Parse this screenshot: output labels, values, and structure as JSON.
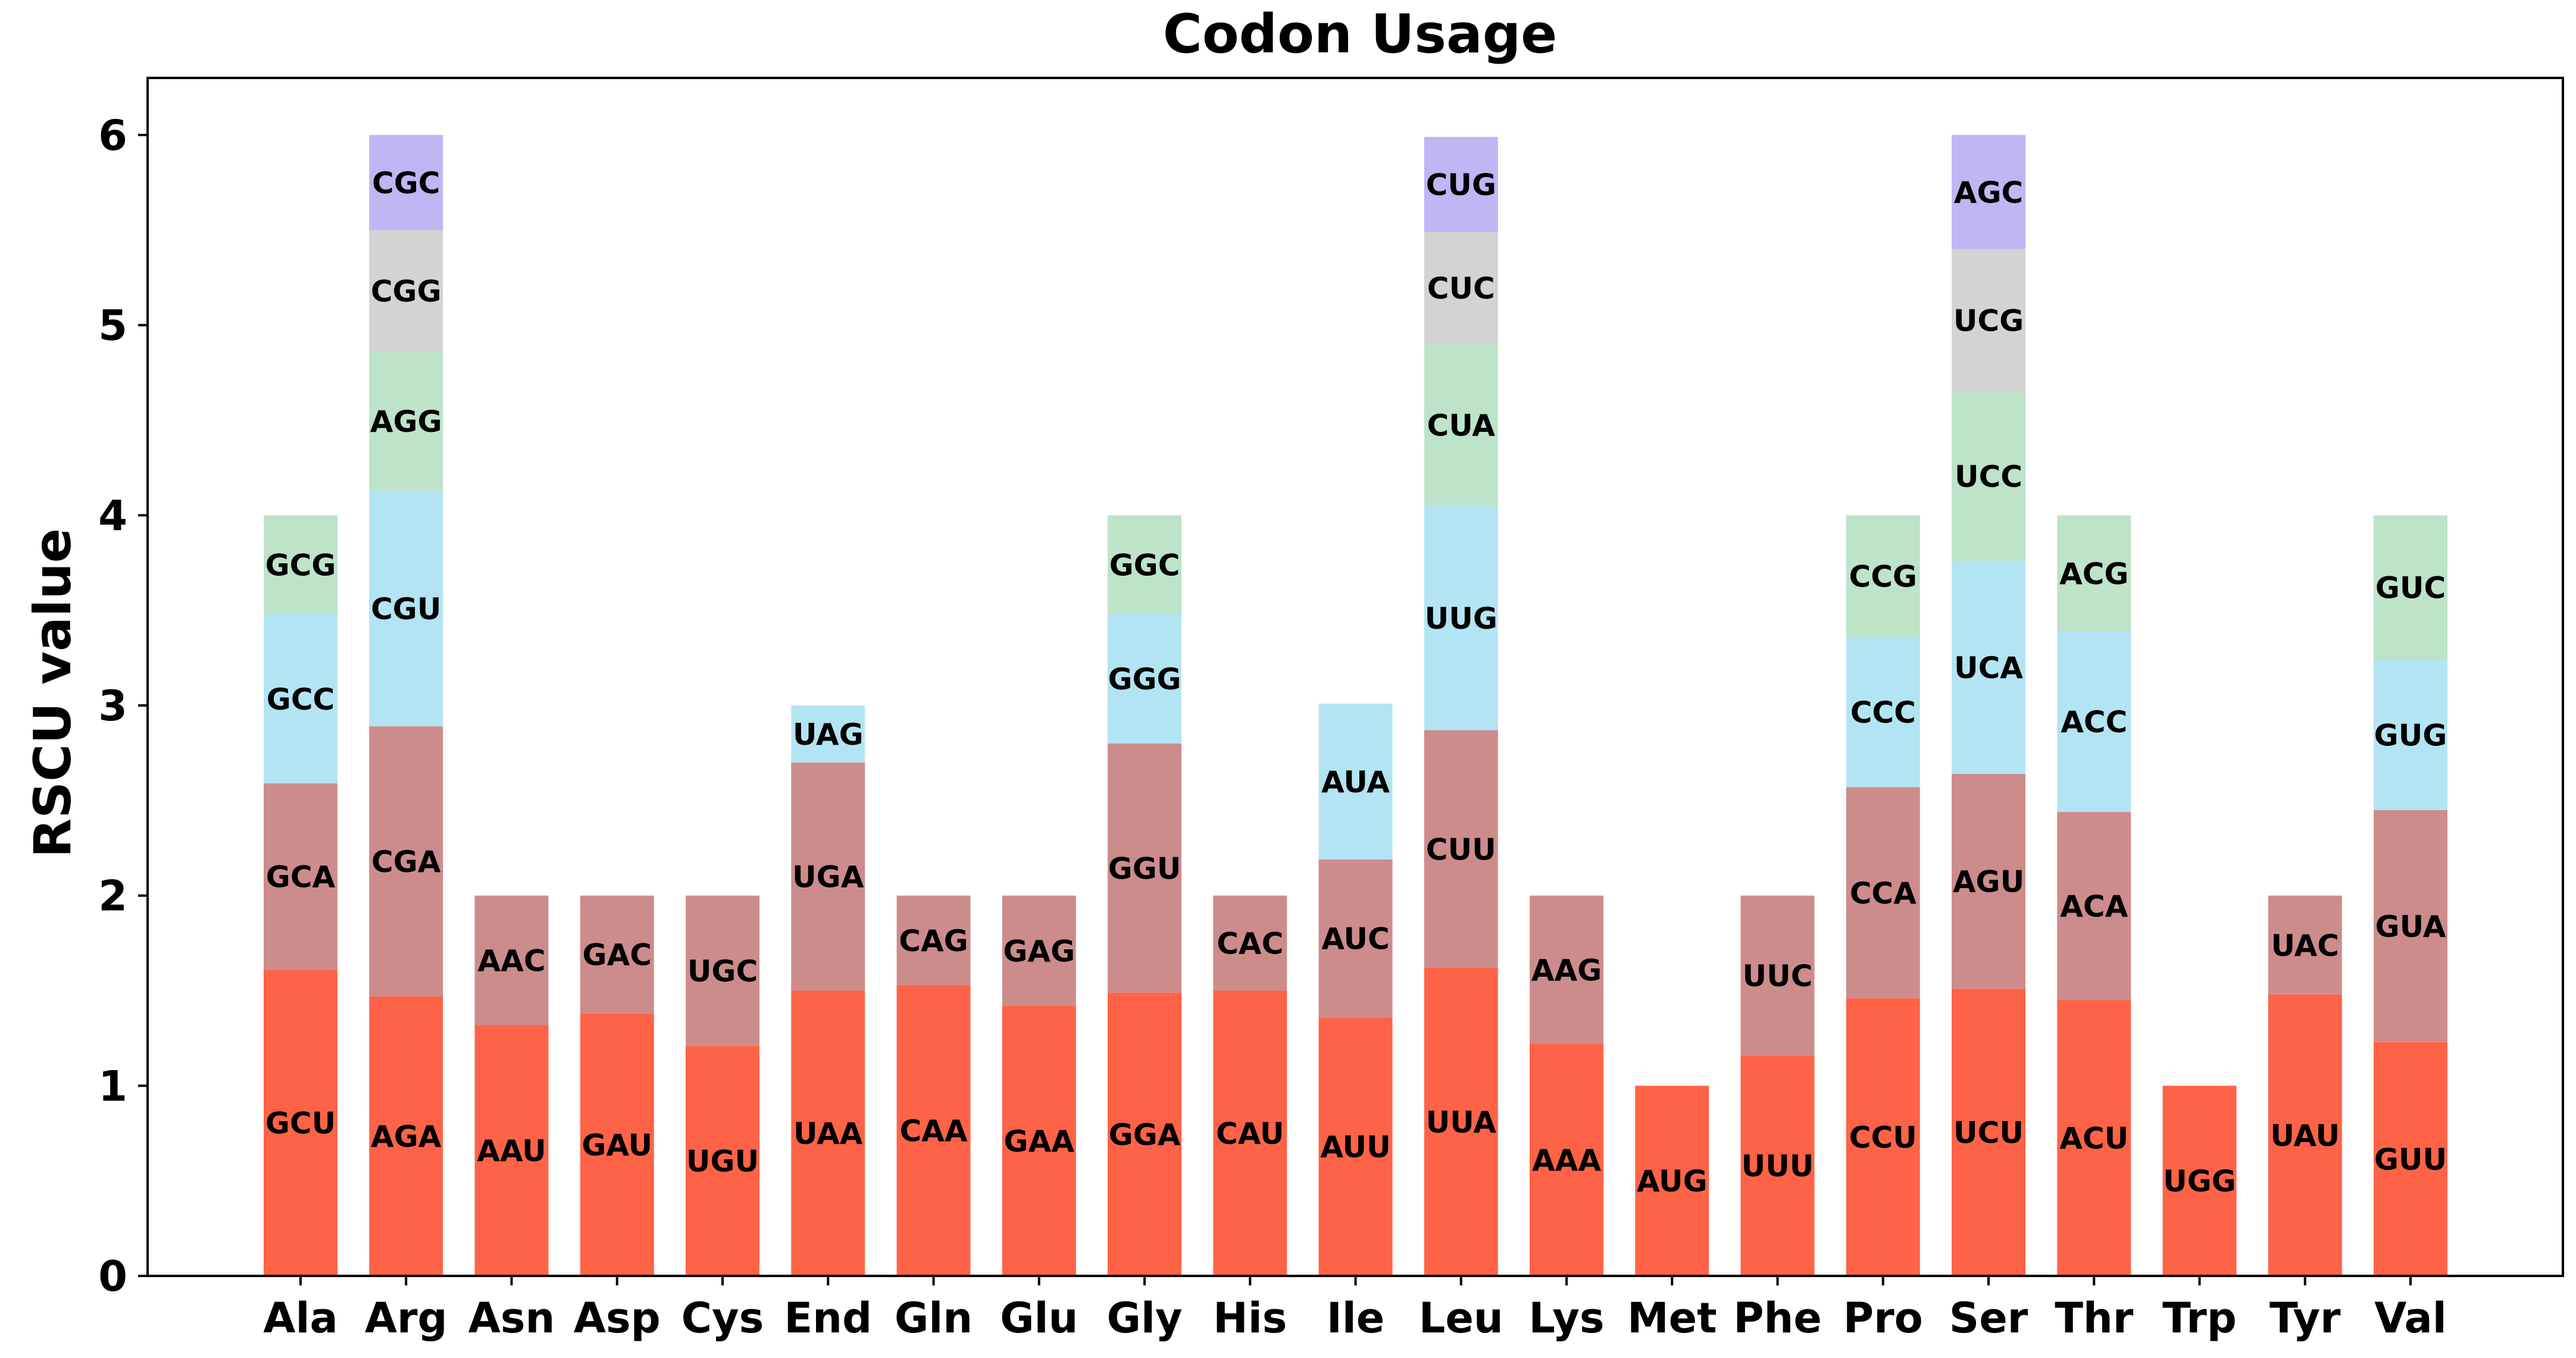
{
  "chart_data": {
    "type": "bar",
    "stacked": true,
    "title": "Codon Usage",
    "xlabel": "",
    "ylabel": "RSCU value",
    "ylim": [
      0,
      6.3
    ],
    "yticks": [
      0,
      1,
      2,
      3,
      4,
      5,
      6
    ],
    "grid": false,
    "legend": "none",
    "layer_colors": [
      "#ff6347",
      "#cd8c8c",
      "#b3e4f3",
      "#bde3c9",
      "#d3d3d3",
      "#c0b6f4"
    ],
    "categories": [
      "Ala",
      "Arg",
      "Asn",
      "Asp",
      "Cys",
      "End",
      "Gln",
      "Glu",
      "Gly",
      "His",
      "Ile",
      "Leu",
      "Lys",
      "Met",
      "Phe",
      "Pro",
      "Ser",
      "Thr",
      "Trp",
      "Tyr",
      "Val"
    ],
    "stacks": [
      [
        {
          "codon": "GCU",
          "value": 1.61
        },
        {
          "codon": "GCA",
          "value": 0.98
        },
        {
          "codon": "GCC",
          "value": 0.89
        },
        {
          "codon": "GCG",
          "value": 0.52
        }
      ],
      [
        {
          "codon": "AGA",
          "value": 1.47
        },
        {
          "codon": "CGA",
          "value": 1.42
        },
        {
          "codon": "CGU",
          "value": 1.24
        },
        {
          "codon": "AGG",
          "value": 0.73
        },
        {
          "codon": "CGG",
          "value": 0.64
        },
        {
          "codon": "CGC",
          "value": 0.5
        }
      ],
      [
        {
          "codon": "AAU",
          "value": 1.32
        },
        {
          "codon": "AAC",
          "value": 0.68
        }
      ],
      [
        {
          "codon": "GAU",
          "value": 1.38
        },
        {
          "codon": "GAC",
          "value": 0.62
        }
      ],
      [
        {
          "codon": "UGU",
          "value": 1.21
        },
        {
          "codon": "UGC",
          "value": 0.79
        }
      ],
      [
        {
          "codon": "UAA",
          "value": 1.5
        },
        {
          "codon": "UGA",
          "value": 1.2
        },
        {
          "codon": "UAG",
          "value": 0.3
        }
      ],
      [
        {
          "codon": "CAA",
          "value": 1.53
        },
        {
          "codon": "CAG",
          "value": 0.47
        }
      ],
      [
        {
          "codon": "GAA",
          "value": 1.42
        },
        {
          "codon": "GAG",
          "value": 0.58
        }
      ],
      [
        {
          "codon": "GGA",
          "value": 1.49
        },
        {
          "codon": "GGU",
          "value": 1.31
        },
        {
          "codon": "GGG",
          "value": 0.68
        },
        {
          "codon": "GGC",
          "value": 0.52
        }
      ],
      [
        {
          "codon": "CAU",
          "value": 1.5
        },
        {
          "codon": "CAC",
          "value": 0.5
        }
      ],
      [
        {
          "codon": "AUU",
          "value": 1.36
        },
        {
          "codon": "AUC",
          "value": 0.83
        },
        {
          "codon": "AUA",
          "value": 0.82
        }
      ],
      [
        {
          "codon": "UUA",
          "value": 1.62
        },
        {
          "codon": "CUU",
          "value": 1.25
        },
        {
          "codon": "UUG",
          "value": 1.18
        },
        {
          "codon": "CUA",
          "value": 0.85
        },
        {
          "codon": "CUC",
          "value": 0.59
        },
        {
          "codon": "CUG",
          "value": 0.5
        }
      ],
      [
        {
          "codon": "AAA",
          "value": 1.22
        },
        {
          "codon": "AAG",
          "value": 0.78
        }
      ],
      [
        {
          "codon": "AUG",
          "value": 1.0
        }
      ],
      [
        {
          "codon": "UUU",
          "value": 1.16
        },
        {
          "codon": "UUC",
          "value": 0.84
        }
      ],
      [
        {
          "codon": "CCU",
          "value": 1.46
        },
        {
          "codon": "CCA",
          "value": 1.11
        },
        {
          "codon": "CCC",
          "value": 0.79
        },
        {
          "codon": "CCG",
          "value": 0.64
        }
      ],
      [
        {
          "codon": "UCU",
          "value": 1.51
        },
        {
          "codon": "AGU",
          "value": 1.13
        },
        {
          "codon": "UCA",
          "value": 1.12
        },
        {
          "codon": "UCC",
          "value": 0.89
        },
        {
          "codon": "UCG",
          "value": 0.75
        },
        {
          "codon": "AGC",
          "value": 0.6
        }
      ],
      [
        {
          "codon": "ACU",
          "value": 1.45
        },
        {
          "codon": "ACA",
          "value": 0.99
        },
        {
          "codon": "ACC",
          "value": 0.95
        },
        {
          "codon": "ACG",
          "value": 0.61
        }
      ],
      [
        {
          "codon": "UGG",
          "value": 1.0
        }
      ],
      [
        {
          "codon": "UAU",
          "value": 1.48
        },
        {
          "codon": "UAC",
          "value": 0.52
        }
      ],
      [
        {
          "codon": "GUU",
          "value": 1.23
        },
        {
          "codon": "GUA",
          "value": 1.22
        },
        {
          "codon": "GUG",
          "value": 0.79
        },
        {
          "codon": "GUC",
          "value": 0.76
        }
      ]
    ]
  }
}
